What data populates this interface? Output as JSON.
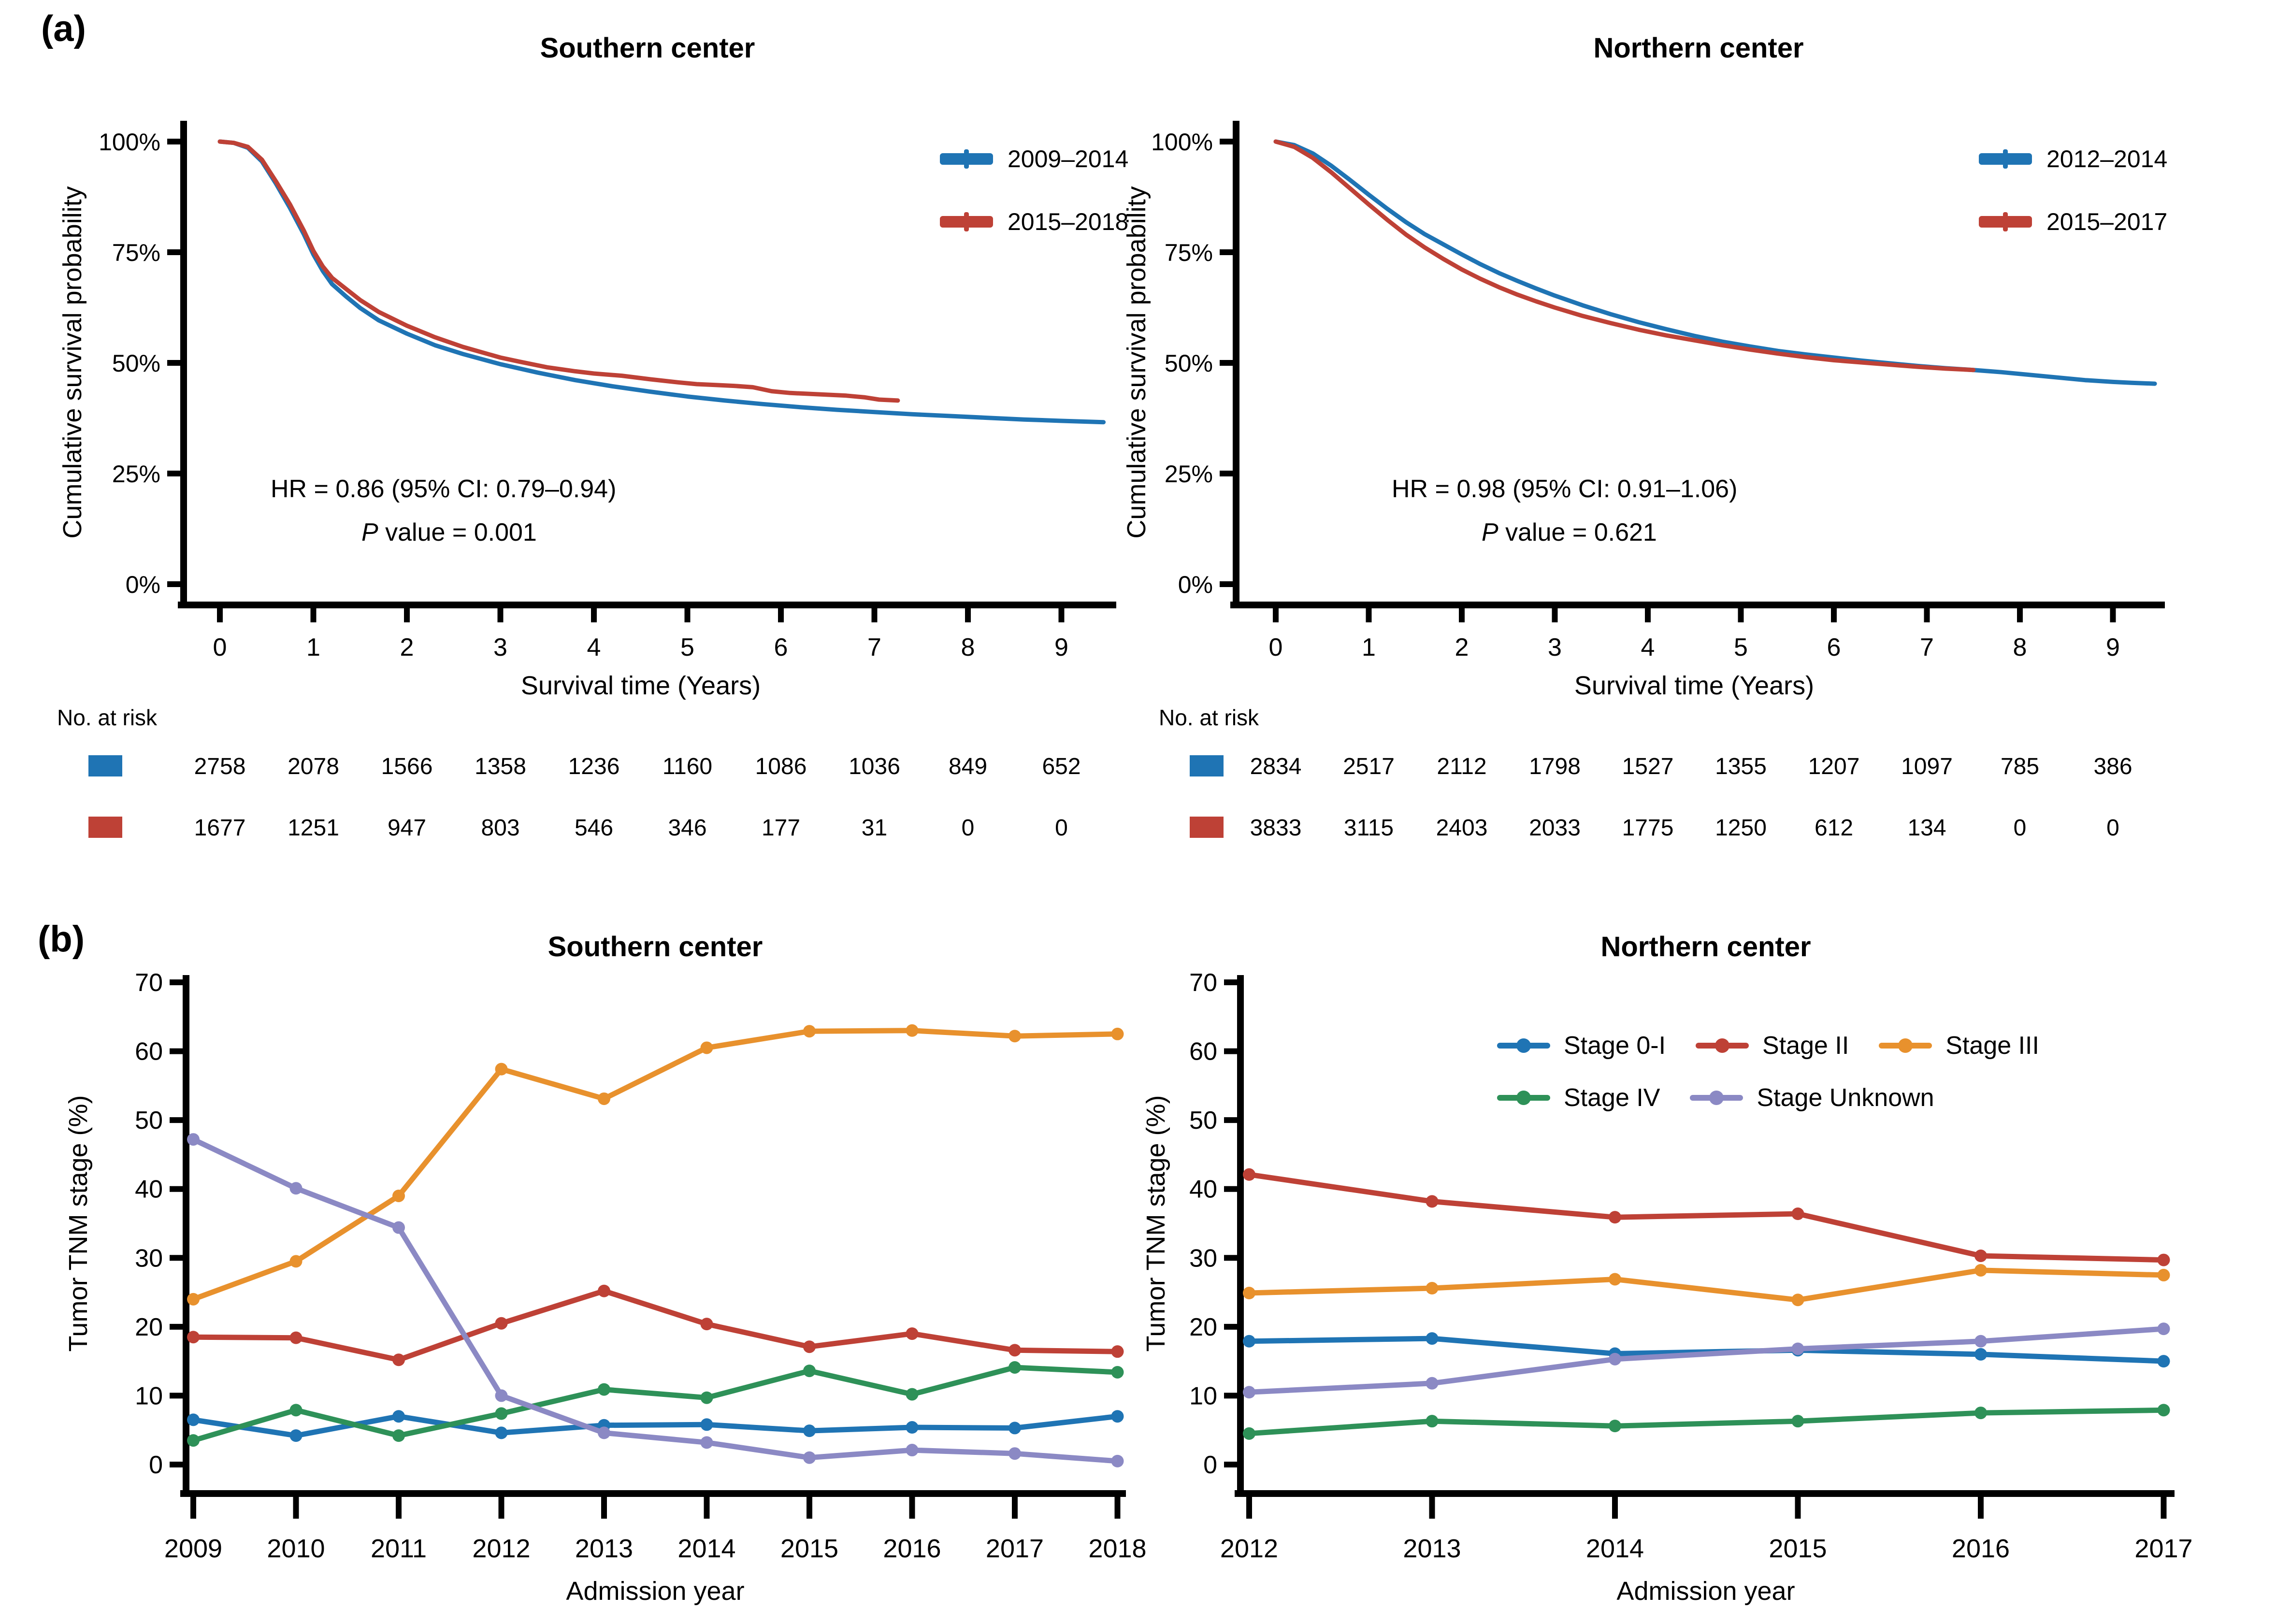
{
  "panels": {
    "a_label": "(a)",
    "b_label": "(b)"
  },
  "colors": {
    "blue": "#1F74B4",
    "red": "#BE4136",
    "orange": "#E8912D",
    "green": "#2E9158",
    "purple": "#8B89C4",
    "axis": "#000000",
    "background": "#FFFFFF"
  },
  "chart_data": [
    {
      "id": "km_south",
      "type": "line",
      "title": "Southern center",
      "xlabel": "Survival time (Years)",
      "ylabel": "Cumulative survival probability",
      "xlim": [
        0,
        9.5
      ],
      "xticks": [
        0,
        1,
        2,
        3,
        4,
        5,
        6,
        7,
        8,
        9
      ],
      "ylim": [
        0,
        100
      ],
      "yticks": [
        0,
        25,
        50,
        75,
        100
      ],
      "ytick_suffix": "%",
      "grid": false,
      "legend_position": "top-right",
      "annotation": {
        "hr": "HR = 0.86 (95% CI: 0.79–0.94)",
        "p_label": "P",
        "p_rest": " value = 0.001"
      },
      "series": [
        {
          "name": "2009–2014",
          "color": "#1F74B4",
          "points": [
            [
              0,
              100
            ],
            [
              0.15,
              99.7
            ],
            [
              0.3,
              98.6
            ],
            [
              0.45,
              95.5
            ],
            [
              0.6,
              90.5
            ],
            [
              0.75,
              85
            ],
            [
              0.9,
              79
            ],
            [
              1,
              74.5
            ],
            [
              1.1,
              70.8
            ],
            [
              1.2,
              67.8
            ],
            [
              1.35,
              65
            ],
            [
              1.5,
              62.4
            ],
            [
              1.7,
              59.6
            ],
            [
              2,
              56.6
            ],
            [
              2.3,
              54
            ],
            [
              2.6,
              52
            ],
            [
              3,
              49.7
            ],
            [
              3.4,
              47.8
            ],
            [
              3.8,
              46.1
            ],
            [
              4.2,
              44.7
            ],
            [
              4.6,
              43.5
            ],
            [
              5,
              42.4
            ],
            [
              5.4,
              41.5
            ],
            [
              5.8,
              40.7
            ],
            [
              6.2,
              40
            ],
            [
              6.6,
              39.4
            ],
            [
              7,
              38.9
            ],
            [
              7.4,
              38.4
            ],
            [
              7.8,
              38
            ],
            [
              8.2,
              37.6
            ],
            [
              8.6,
              37.2
            ],
            [
              9,
              36.9
            ],
            [
              9.45,
              36.6
            ]
          ]
        },
        {
          "name": "2015–2018",
          "color": "#BE4136",
          "points": [
            [
              0,
              100
            ],
            [
              0.15,
              99.7
            ],
            [
              0.3,
              98.8
            ],
            [
              0.45,
              95.9
            ],
            [
              0.6,
              91
            ],
            [
              0.75,
              85.8
            ],
            [
              0.9,
              79.8
            ],
            [
              1,
              75.3
            ],
            [
              1.1,
              71.8
            ],
            [
              1.2,
              69.2
            ],
            [
              1.35,
              66.7
            ],
            [
              1.5,
              64.2
            ],
            [
              1.7,
              61.5
            ],
            [
              2,
              58.4
            ],
            [
              2.3,
              55.8
            ],
            [
              2.6,
              53.6
            ],
            [
              3,
              51.2
            ],
            [
              3.2,
              50.3
            ],
            [
              3.5,
              49
            ],
            [
              3.8,
              48.1
            ],
            [
              4,
              47.6
            ],
            [
              4.3,
              47.1
            ],
            [
              4.6,
              46.3
            ],
            [
              4.9,
              45.6
            ],
            [
              5.1,
              45.2
            ],
            [
              5.3,
              45
            ],
            [
              5.5,
              44.8
            ],
            [
              5.7,
              44.5
            ],
            [
              5.9,
              43.6
            ],
            [
              6.1,
              43.2
            ],
            [
              6.4,
              42.9
            ],
            [
              6.7,
              42.6
            ],
            [
              6.9,
              42.2
            ],
            [
              7.05,
              41.7
            ],
            [
              7.25,
              41.5
            ]
          ]
        }
      ],
      "at_risk": {
        "label": "No. at risk",
        "rows": [
          {
            "color": "#1F74B4",
            "values": [
              2758,
              2078,
              1566,
              1358,
              1236,
              1160,
              1086,
              1036,
              849,
              652
            ]
          },
          {
            "color": "#BE4136",
            "values": [
              1677,
              1251,
              947,
              803,
              546,
              346,
              177,
              31,
              0,
              0
            ]
          }
        ]
      }
    },
    {
      "id": "km_north",
      "type": "line",
      "title": "Northern center",
      "xlabel": "Survival time (Years)",
      "ylabel": "Cumulative survival probability",
      "xlim": [
        0,
        9.5
      ],
      "xticks": [
        0,
        1,
        2,
        3,
        4,
        5,
        6,
        7,
        8,
        9
      ],
      "ylim": [
        0,
        100
      ],
      "yticks": [
        0,
        25,
        50,
        75,
        100
      ],
      "ytick_suffix": "%",
      "grid": false,
      "legend_position": "top-right",
      "annotation": {
        "hr": "HR = 0.98 (95% CI: 0.91–1.06)",
        "p_label": "P",
        "p_rest": " value = 0.621"
      },
      "series": [
        {
          "name": "2012–2014",
          "color": "#1F74B4",
          "points": [
            [
              0,
              100
            ],
            [
              0.2,
              99.2
            ],
            [
              0.4,
              97.3
            ],
            [
              0.6,
              94.5
            ],
            [
              0.8,
              91.3
            ],
            [
              1,
              88
            ],
            [
              1.2,
              84.8
            ],
            [
              1.4,
              81.8
            ],
            [
              1.6,
              79.1
            ],
            [
              1.8,
              76.8
            ],
            [
              2,
              74.5
            ],
            [
              2.2,
              72.3
            ],
            [
              2.4,
              70.3
            ],
            [
              2.6,
              68.5
            ],
            [
              2.8,
              66.8
            ],
            [
              3,
              65.2
            ],
            [
              3.3,
              63
            ],
            [
              3.6,
              61
            ],
            [
              3.9,
              59.2
            ],
            [
              4.2,
              57.6
            ],
            [
              4.5,
              56.1
            ],
            [
              4.8,
              54.8
            ],
            [
              5.1,
              53.7
            ],
            [
              5.4,
              52.7
            ],
            [
              5.7,
              51.9
            ],
            [
              6,
              51.2
            ],
            [
              6.3,
              50.5
            ],
            [
              6.6,
              49.9
            ],
            [
              6.9,
              49.3
            ],
            [
              7.2,
              48.8
            ],
            [
              7.5,
              48.4
            ],
            [
              7.8,
              47.9
            ],
            [
              8.1,
              47.3
            ],
            [
              8.4,
              46.7
            ],
            [
              8.7,
              46.1
            ],
            [
              9,
              45.7
            ],
            [
              9.2,
              45.5
            ],
            [
              9.45,
              45.3
            ]
          ]
        },
        {
          "name": "2015–2017",
          "color": "#BE4136",
          "points": [
            [
              0,
              100
            ],
            [
              0.2,
              98.8
            ],
            [
              0.4,
              96.3
            ],
            [
              0.6,
              93
            ],
            [
              0.8,
              89.4
            ],
            [
              1,
              85.8
            ],
            [
              1.2,
              82.3
            ],
            [
              1.4,
              79
            ],
            [
              1.6,
              76.1
            ],
            [
              1.8,
              73.5
            ],
            [
              2,
              71.1
            ],
            [
              2.2,
              69
            ],
            [
              2.4,
              67.1
            ],
            [
              2.6,
              65.4
            ],
            [
              2.8,
              63.9
            ],
            [
              3,
              62.5
            ],
            [
              3.3,
              60.6
            ],
            [
              3.6,
              59
            ],
            [
              3.9,
              57.5
            ],
            [
              4.2,
              56.2
            ],
            [
              4.5,
              55.1
            ],
            [
              4.8,
              54
            ],
            [
              5.1,
              53
            ],
            [
              5.4,
              52.1
            ],
            [
              5.7,
              51.3
            ],
            [
              6,
              50.6
            ],
            [
              6.3,
              50.1
            ],
            [
              6.6,
              49.6
            ],
            [
              6.9,
              49.1
            ],
            [
              7.2,
              48.7
            ],
            [
              7.5,
              48.4
            ]
          ]
        }
      ],
      "at_risk": {
        "label": "No. at risk",
        "rows": [
          {
            "color": "#1F74B4",
            "values": [
              2834,
              2517,
              2112,
              1798,
              1527,
              1355,
              1207,
              1097,
              785,
              386
            ]
          },
          {
            "color": "#BE4136",
            "values": [
              3833,
              3115,
              2403,
              2033,
              1775,
              1250,
              612,
              134,
              0,
              0
            ]
          }
        ]
      }
    },
    {
      "id": "tnm_south",
      "type": "line",
      "title": "Southern center",
      "xlabel": "Admission year",
      "ylabel": "Tumor TNM stage (%)",
      "categories": [
        2009,
        2010,
        2011,
        2012,
        2013,
        2014,
        2015,
        2016,
        2017,
        2018
      ],
      "ylim": [
        0,
        70
      ],
      "yticks": [
        0,
        10,
        20,
        30,
        40,
        50,
        60,
        70
      ],
      "grid": false,
      "series": [
        {
          "name": "Stage 0-I",
          "color": "#1F74B4",
          "values": [
            6.5,
            4.2,
            7,
            4.6,
            5.7,
            5.8,
            4.9,
            5.4,
            5.3,
            7
          ]
        },
        {
          "name": "Stage II",
          "color": "#BE4136",
          "values": [
            18.5,
            18.4,
            15.2,
            20.5,
            25.2,
            20.4,
            17.1,
            19,
            16.6,
            16.4
          ]
        },
        {
          "name": "Stage III",
          "color": "#E8912D",
          "values": [
            24,
            29.5,
            39,
            57.4,
            53.1,
            60.5,
            62.9,
            63,
            62.2,
            62.5
          ]
        },
        {
          "name": "Stage IV",
          "color": "#2E9158",
          "values": [
            3.5,
            7.9,
            4.2,
            7.4,
            10.9,
            9.7,
            13.6,
            10.2,
            14.1,
            13.4
          ]
        },
        {
          "name": "Stage Unknown",
          "color": "#8B89C4",
          "values": [
            47.2,
            40.1,
            34.4,
            10,
            4.6,
            3.2,
            1,
            2.1,
            1.6,
            0.5
          ]
        }
      ]
    },
    {
      "id": "tnm_north",
      "type": "line",
      "title": "Northern center",
      "xlabel": "Admission year",
      "ylabel": "Tumor TNM stage (%)",
      "categories": [
        2012,
        2013,
        2014,
        2015,
        2016,
        2017
      ],
      "ylim": [
        0,
        70
      ],
      "yticks": [
        0,
        10,
        20,
        30,
        40,
        50,
        60,
        70
      ],
      "grid": false,
      "legend_position": "top-inside",
      "series": [
        {
          "name": "Stage 0-I",
          "color": "#1F74B4",
          "values": [
            17.9,
            18.3,
            16.1,
            16.6,
            16,
            15
          ]
        },
        {
          "name": "Stage II",
          "color": "#BE4136",
          "values": [
            42.1,
            38.2,
            35.9,
            36.4,
            30.3,
            29.7
          ]
        },
        {
          "name": "Stage III",
          "color": "#E8912D",
          "values": [
            24.9,
            25.6,
            26.9,
            23.9,
            28.2,
            27.5
          ]
        },
        {
          "name": "Stage IV",
          "color": "#2E9158",
          "values": [
            4.5,
            6.3,
            5.6,
            6.3,
            7.5,
            7.9
          ]
        },
        {
          "name": "Stage Unknown",
          "color": "#8B89C4",
          "values": [
            10.5,
            11.8,
            15.3,
            16.8,
            17.9,
            19.7
          ]
        }
      ]
    }
  ]
}
